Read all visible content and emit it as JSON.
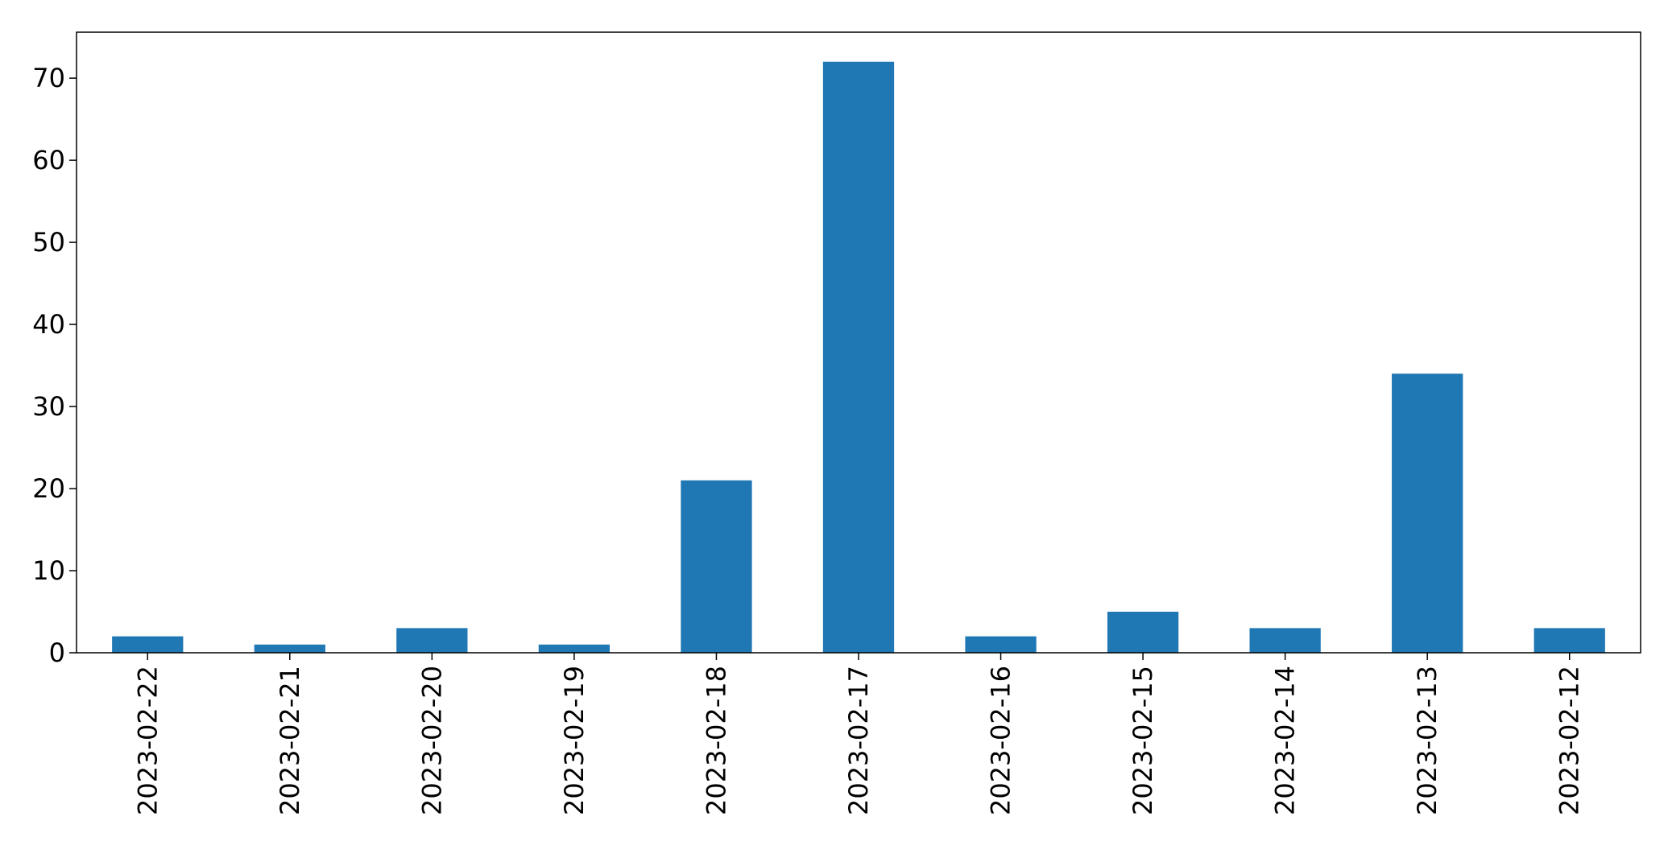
{
  "chart_data": {
    "type": "bar",
    "title": "",
    "xlabel": "",
    "ylabel": "",
    "categories": [
      "2023-02-22",
      "2023-02-21",
      "2023-02-20",
      "2023-02-19",
      "2023-02-18",
      "2023-02-17",
      "2023-02-16",
      "2023-02-15",
      "2023-02-14",
      "2023-02-13",
      "2023-02-12"
    ],
    "values": [
      2,
      1,
      3,
      1,
      21,
      72,
      2,
      5,
      3,
      34,
      3
    ],
    "ylim": [
      0,
      75.6
    ],
    "yticks": [
      0,
      10,
      20,
      30,
      40,
      50,
      60,
      70
    ],
    "grid": false,
    "legend": "none",
    "bar_color": "#1f77b4"
  }
}
